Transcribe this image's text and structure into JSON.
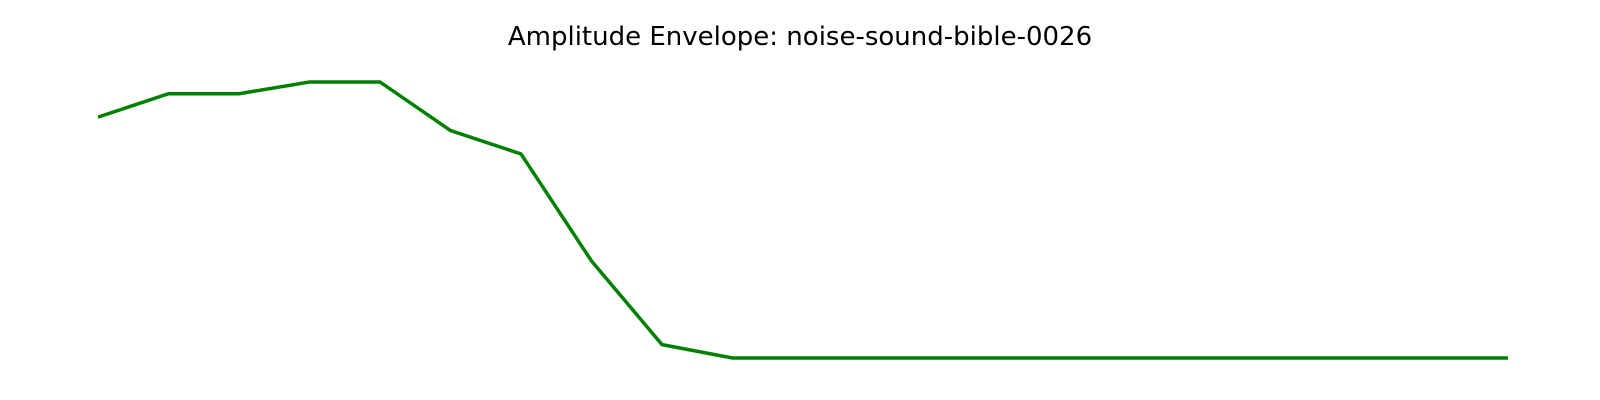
{
  "chart_data": {
    "type": "line",
    "title": "Amplitude Envelope: noise-sound-bible-0026",
    "xlabel": "",
    "ylabel": "",
    "grid": false,
    "axes_visible": false,
    "line_color": "#008000",
    "x": [
      0,
      1,
      2,
      3,
      4,
      5,
      6,
      7,
      8,
      9,
      10,
      11,
      12,
      13,
      14,
      15,
      16,
      17,
      18,
      19,
      20
    ],
    "series": [
      {
        "values": [
          0.87,
          0.94,
          0.94,
          0.975,
          0.975,
          0.83,
          0.76,
          0.44,
          0.19,
          0.15,
          0.15,
          0.15,
          0.15,
          0.15,
          0.15,
          0.15,
          0.15,
          0.15,
          0.15,
          0.15,
          0.15
        ]
      }
    ],
    "xlim": [
      0,
      20
    ],
    "ylim": [
      0.15,
      0.975
    ]
  }
}
